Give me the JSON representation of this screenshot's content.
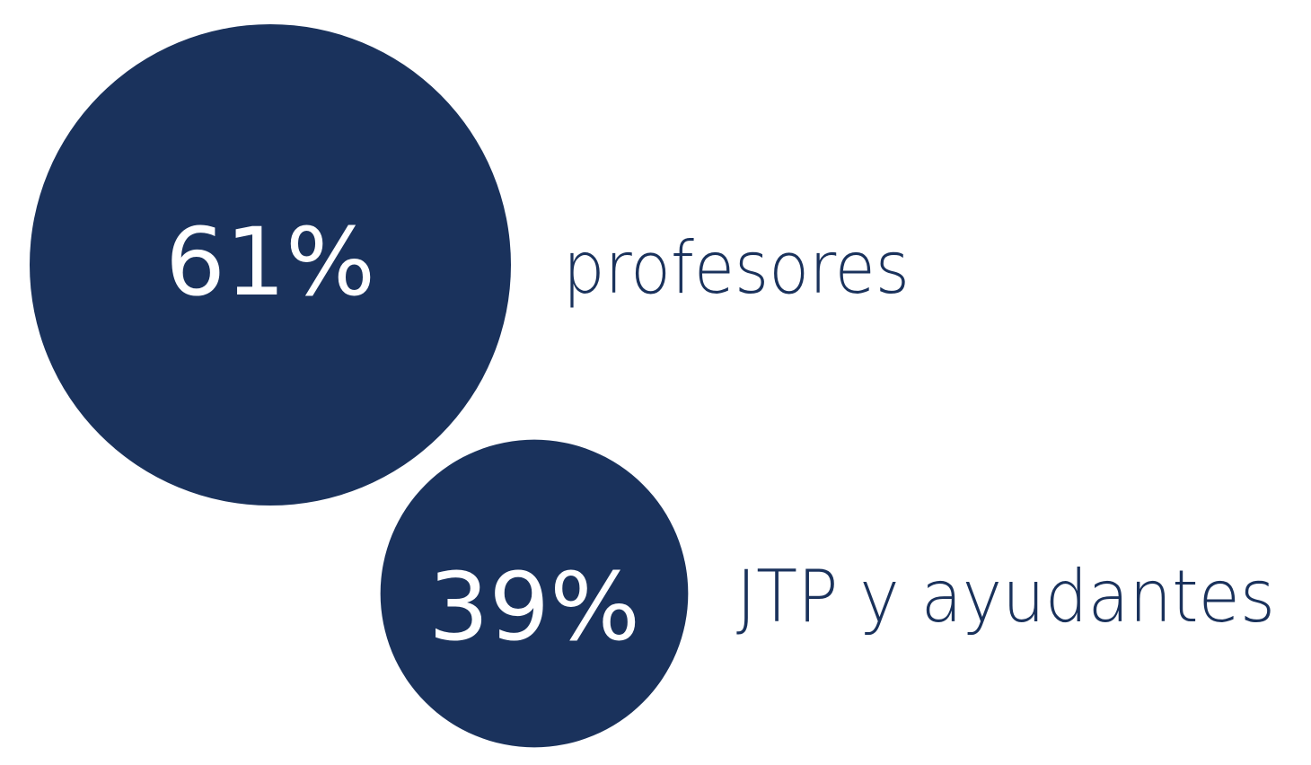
{
  "chart_data": {
    "type": "bubble",
    "categories": [
      "profesores",
      "JTP y ayudantes"
    ],
    "values": [
      61,
      39
    ],
    "value_labels": [
      "61%",
      "39%"
    ],
    "color": "#1a325c"
  }
}
